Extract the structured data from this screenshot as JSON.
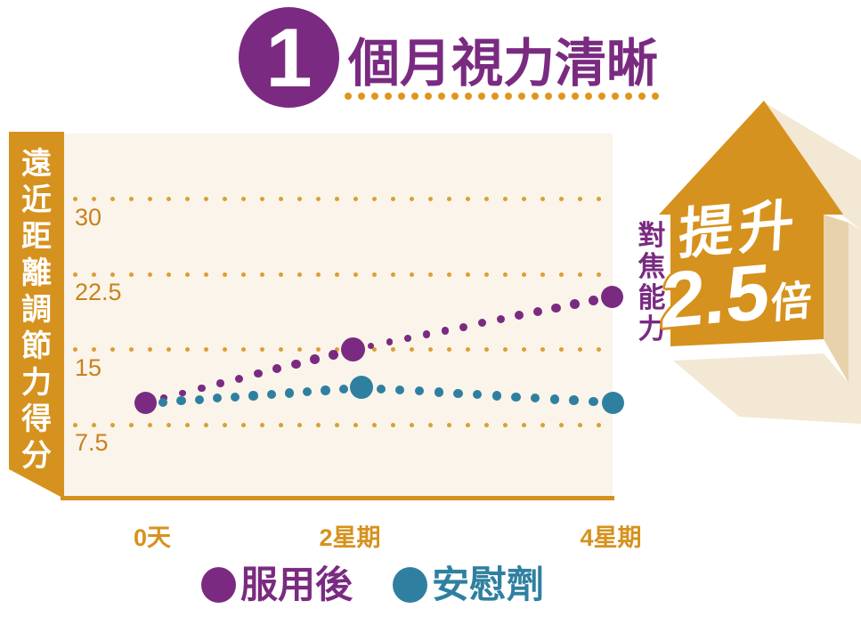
{
  "palette": {
    "orange": "#D6921E",
    "orange_dot": "#DC9E33",
    "tick_text": "#C8821E",
    "underline_dot": "#E0951B",
    "cream": "#FAF4EA",
    "purple": "#7A2B81",
    "teal": "#2F80A0",
    "tan_light": "#F3E8D3",
    "tan_mid": "#E7D2AB",
    "white": "#FFFFFF"
  },
  "header": {
    "badge_number": "1",
    "title": "個月視力清晰"
  },
  "chart_data": {
    "type": "line",
    "title": "1個月視力清晰",
    "xlabel": "",
    "ylabel": "遠近距離調節力得分",
    "categories": [
      "0天",
      "2星期",
      "4星期"
    ],
    "yticks": [
      30,
      22.5,
      15,
      7.5
    ],
    "ylim": [
      5,
      33
    ],
    "grid": "horizontal dotted",
    "legend_position": "bottom",
    "line_style": "dotted",
    "series": [
      {
        "name": "服用後",
        "color": "#7A2B81",
        "values": [
          9.7,
          15,
          20.3
        ],
        "markers": "large dot at 0天, 2星期, 4星期"
      },
      {
        "name": "安慰劑",
        "color": "#2F80A0",
        "values": [
          9.6,
          11.2,
          9.7
        ],
        "markers": "large dot at 2星期, 4星期"
      }
    ],
    "annotation": "對焦能力提升2.5倍"
  },
  "annotation": {
    "focus_label": "對焦能力",
    "boost_prefix": "提升",
    "boost_value": "2.5",
    "boost_suffix": "倍"
  }
}
